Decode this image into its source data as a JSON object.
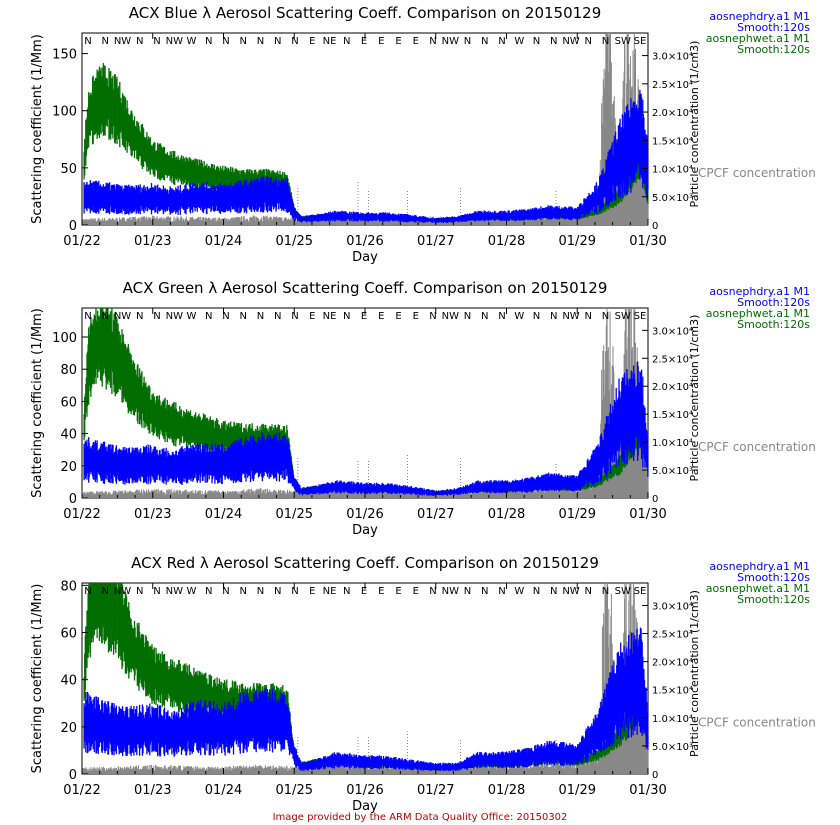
{
  "colors": {
    "dry": "#0000ff",
    "wet": "#006e00",
    "cpc": "#888888",
    "footer": "#bb0000",
    "axis": "#000000"
  },
  "footer": "Image provided by the ARM Data Quality Office: 20150302",
  "chart_data": [
    {
      "type": "line",
      "title": "ACX Blue λ Aerosol Scattering Coeff. Comparison on 20150129",
      "xlabel": "Day",
      "ylabel": "Scattering coefficient (1/Mm)",
      "y2label": "Particle concentration (1/cm3)",
      "x_ticks": [
        "01/22",
        "01/23",
        "01/24",
        "01/25",
        "01/26",
        "01/27",
        "01/28",
        "01/29",
        "01/30"
      ],
      "y_ticks": [
        "0",
        "50",
        "100",
        "150"
      ],
      "ylim": [
        0,
        168
      ],
      "y_tick_values": [
        0,
        50,
        100,
        150
      ],
      "y2_ticks": [
        "5.0×10³",
        "1.0×10⁴",
        "1.5×10⁴",
        "2.0×10⁴",
        "2.5×10⁴",
        "3.0×10⁴"
      ],
      "y2_tick_values": [
        5000,
        10000,
        15000,
        20000,
        25000,
        30000
      ],
      "y2lim": [
        0,
        34000
      ],
      "wind_dirs": [
        "N",
        "N",
        "NW",
        "N",
        "N",
        "NW",
        "W",
        "N",
        "N",
        "N",
        "N",
        "N",
        "N",
        "E",
        "NE",
        "N",
        "E",
        "E",
        "E",
        "E",
        "N",
        "NW",
        "N",
        "N",
        "N",
        "W",
        "N",
        "N",
        "NW",
        "N",
        "N",
        "SW",
        "SE"
      ],
      "legend": [
        "aosnephdry.a1 M1",
        "Smooth:120s",
        "aosnephwet.a1 M1",
        "Smooth:120s"
      ],
      "cpc_label": "CPCF concentration",
      "series": [
        {
          "name": "aosnephdry.a1 M1",
          "x": [
            0.0,
            0.05,
            0.3,
            0.6,
            1.0,
            1.3,
            1.6,
            2.0,
            2.3,
            2.6,
            2.9,
            3.0,
            3.1,
            3.3,
            3.6,
            4.0,
            4.3,
            4.6,
            5.0,
            5.3,
            5.6,
            6.0,
            6.3,
            6.6,
            7.0,
            7.3,
            7.6,
            7.9,
            8.0
          ],
          "y": [
            22,
            25,
            24,
            22,
            23,
            21,
            24,
            23,
            25,
            27,
            26,
            10,
            5,
            6,
            8,
            7,
            7,
            6,
            4,
            5,
            8,
            8,
            9,
            11,
            10,
            25,
            58,
            80,
            45
          ]
        },
        {
          "name": "aosnephwet.a1 M1",
          "x": [
            0.0,
            0.05,
            0.1,
            0.2,
            0.3,
            0.5,
            0.7,
            1.0,
            1.3,
            1.6,
            2.0,
            2.3,
            2.6,
            2.9,
            3.0,
            3.1,
            3.3,
            3.6,
            4.0,
            4.3,
            4.6,
            5.0,
            5.3,
            5.6,
            6.0,
            6.3,
            6.6,
            7.0,
            7.3,
            7.6,
            7.9,
            8.0
          ],
          "y": [
            25,
            70,
            95,
            105,
            110,
            100,
            80,
            58,
            50,
            45,
            40,
            38,
            38,
            36,
            12,
            6,
            7,
            8,
            6,
            6,
            5,
            4,
            5,
            6,
            6,
            7,
            8,
            7,
            12,
            25,
            60,
            25
          ]
        },
        {
          "name": "CPCF concentration",
          "axis": "y2",
          "x": [
            0.0,
            0.5,
            1.0,
            1.5,
            2.0,
            2.5,
            3.0,
            3.5,
            4.0,
            4.5,
            5.0,
            5.5,
            6.0,
            6.5,
            7.0,
            7.3,
            7.4,
            7.5,
            7.6,
            7.7,
            7.8,
            7.9,
            8.0
          ],
          "y": [
            800,
            900,
            1100,
            1000,
            900,
            1200,
            900,
            1500,
            1300,
            1200,
            1000,
            1100,
            1300,
            1500,
            1600,
            3000,
            32000,
            20000,
            5000,
            30000,
            25000,
            12000,
            6000
          ]
        }
      ]
    },
    {
      "type": "line",
      "title": "ACX Green λ Aerosol Scattering Coeff. Comparison on 20150129",
      "xlabel": "Day",
      "ylabel": "Scattering coefficient (1/Mm)",
      "y2label": "Particle concentration (1/cm3)",
      "x_ticks": [
        "01/22",
        "01/23",
        "01/24",
        "01/25",
        "01/26",
        "01/27",
        "01/28",
        "01/29",
        "01/30"
      ],
      "y_ticks": [
        "0",
        "20",
        "40",
        "60",
        "80",
        "100"
      ],
      "ylim": [
        0,
        118
      ],
      "y_tick_values": [
        0,
        20,
        40,
        60,
        80,
        100
      ],
      "y2_ticks": [
        "5.0×10³",
        "1.0×10⁴",
        "1.5×10⁴",
        "2.0×10⁴",
        "2.5×10⁴",
        "3.0×10⁴"
      ],
      "y2_tick_values": [
        5000,
        10000,
        15000,
        20000,
        25000,
        30000
      ],
      "y2lim": [
        0,
        34000
      ],
      "wind_dirs": [
        "N",
        "N",
        "NW",
        "N",
        "N",
        "NW",
        "W",
        "N",
        "N",
        "N",
        "N",
        "N",
        "N",
        "E",
        "NE",
        "N",
        "E",
        "E",
        "E",
        "E",
        "N",
        "NW",
        "N",
        "N",
        "N",
        "W",
        "N",
        "N",
        "NW",
        "N",
        "N",
        "SW",
        "SE"
      ],
      "legend": [
        "aosnephdry.a1 M1",
        "Smooth:120s",
        "aosnephwet.a1 M1",
        "Smooth:120s"
      ],
      "cpc_label": "CPCF concentration",
      "series": [
        {
          "name": "aosnephdry.a1 M1",
          "x": [
            0.0,
            0.05,
            0.3,
            0.6,
            1.0,
            1.3,
            1.6,
            2.0,
            2.3,
            2.6,
            2.9,
            3.0,
            3.1,
            3.3,
            3.6,
            4.0,
            4.3,
            4.6,
            5.0,
            5.3,
            5.6,
            6.0,
            6.3,
            6.6,
            7.0,
            7.3,
            7.6,
            7.9,
            8.0
          ],
          "y": [
            20,
            24,
            22,
            20,
            21,
            19,
            22,
            21,
            24,
            26,
            25,
            9,
            4,
            5,
            7,
            6,
            6,
            5,
            3,
            4,
            7,
            7,
            8,
            10,
            9,
            22,
            48,
            55,
            25
          ]
        },
        {
          "name": "aosnephwet.a1 M1",
          "x": [
            0.0,
            0.05,
            0.1,
            0.2,
            0.3,
            0.5,
            0.7,
            1.0,
            1.3,
            1.6,
            2.0,
            2.3,
            2.6,
            2.9,
            3.0,
            3.1,
            3.3,
            3.6,
            4.0,
            4.3,
            4.6,
            5.0,
            5.3,
            5.6,
            6.0,
            6.3,
            6.6,
            7.0,
            7.3,
            7.6,
            7.9,
            8.0
          ],
          "y": [
            20,
            60,
            85,
            95,
            97,
            88,
            70,
            52,
            46,
            42,
            37,
            36,
            36,
            35,
            10,
            5,
            6,
            7,
            5,
            5,
            4,
            3,
            4,
            5,
            5,
            6,
            7,
            6,
            10,
            20,
            45,
            20
          ]
        },
        {
          "name": "CPCF concentration",
          "axis": "y2",
          "x": [
            0.0,
            0.5,
            1.0,
            1.5,
            2.0,
            2.5,
            3.0,
            3.5,
            4.0,
            4.5,
            5.0,
            5.5,
            6.0,
            6.5,
            7.0,
            7.3,
            7.4,
            7.5,
            7.6,
            7.7,
            7.8,
            7.9,
            8.0
          ],
          "y": [
            800,
            900,
            1100,
            1000,
            900,
            1200,
            900,
            1500,
            1300,
            1200,
            1000,
            1100,
            1300,
            1500,
            1600,
            3000,
            32000,
            20000,
            5000,
            30000,
            25000,
            12000,
            6000
          ]
        }
      ]
    },
    {
      "type": "line",
      "title": "ACX Red λ Aerosol Scattering Coeff. Comparison on 20150129",
      "xlabel": "Day",
      "ylabel": "Scattering coefficient (1/Mm)",
      "y2label": "Particle concentration (1/cm3)",
      "x_ticks": [
        "01/22",
        "01/23",
        "01/24",
        "01/25",
        "01/26",
        "01/27",
        "01/28",
        "01/29",
        "01/30"
      ],
      "y_ticks": [
        "0",
        "20",
        "40",
        "60",
        "80"
      ],
      "ylim": [
        0,
        81
      ],
      "y_tick_values": [
        0,
        20,
        40,
        60,
        80
      ],
      "y2_ticks": [
        "5.0×10³",
        "1.0×10⁴",
        "1.5×10⁴",
        "2.0×10⁴",
        "2.5×10⁴",
        "3.0×10⁴"
      ],
      "y2_tick_values": [
        5000,
        10000,
        15000,
        20000,
        25000,
        30000
      ],
      "y2lim": [
        0,
        34000
      ],
      "wind_dirs": [
        "N",
        "N",
        "NW",
        "N",
        "N",
        "NW",
        "W",
        "N",
        "N",
        "N",
        "N",
        "N",
        "N",
        "E",
        "NE",
        "N",
        "E",
        "E",
        "E",
        "E",
        "N",
        "NW",
        "N",
        "N",
        "N",
        "W",
        "N",
        "N",
        "NW",
        "N",
        "N",
        "SW",
        "SE"
      ],
      "legend": [
        "aosnephdry.a1 M1",
        "Smooth:120s",
        "aosnephwet.a1 M1",
        "Smooth:120s"
      ],
      "cpc_label": "CPCF concentration",
      "series": [
        {
          "name": "aosnephdry.a1 M1",
          "x": [
            0.0,
            0.05,
            0.3,
            0.6,
            1.0,
            1.3,
            1.6,
            2.0,
            2.3,
            2.6,
            2.9,
            3.0,
            3.1,
            3.3,
            3.6,
            4.0,
            4.3,
            4.6,
            5.0,
            5.3,
            5.6,
            6.0,
            6.3,
            6.6,
            7.0,
            7.3,
            7.6,
            7.9,
            8.0
          ],
          "y": [
            18,
            22,
            20,
            18,
            19,
            17,
            20,
            19,
            22,
            23,
            22,
            8,
            3,
            4,
            6,
            5,
            5,
            4,
            3,
            3,
            6,
            6,
            7,
            9,
            8,
            18,
            35,
            40,
            18
          ]
        },
        {
          "name": "aosnephwet.a1 M1",
          "x": [
            0.0,
            0.05,
            0.1,
            0.2,
            0.3,
            0.5,
            0.7,
            1.0,
            1.3,
            1.6,
            2.0,
            2.3,
            2.6,
            2.9,
            3.0,
            3.1,
            3.3,
            3.6,
            4.0,
            4.3,
            4.6,
            5.0,
            5.3,
            5.6,
            6.0,
            6.3,
            6.6,
            7.0,
            7.3,
            7.6,
            7.9,
            8.0
          ],
          "y": [
            15,
            50,
            68,
            74,
            75,
            68,
            54,
            42,
            38,
            35,
            31,
            30,
            30,
            29,
            8,
            4,
            5,
            6,
            4,
            4,
            3,
            2,
            3,
            4,
            4,
            5,
            6,
            5,
            8,
            16,
            30,
            14
          ]
        },
        {
          "name": "CPCF concentration",
          "axis": "y2",
          "x": [
            0.0,
            0.5,
            1.0,
            1.5,
            2.0,
            2.5,
            3.0,
            3.5,
            4.0,
            4.5,
            5.0,
            5.5,
            6.0,
            6.5,
            7.0,
            7.3,
            7.4,
            7.5,
            7.6,
            7.7,
            7.8,
            7.9,
            8.0
          ],
          "y": [
            800,
            900,
            1100,
            1000,
            900,
            1200,
            900,
            1500,
            1300,
            1200,
            1000,
            1100,
            1300,
            1500,
            1600,
            3000,
            32000,
            20000,
            5000,
            30000,
            25000,
            12000,
            6000
          ]
        }
      ]
    }
  ]
}
